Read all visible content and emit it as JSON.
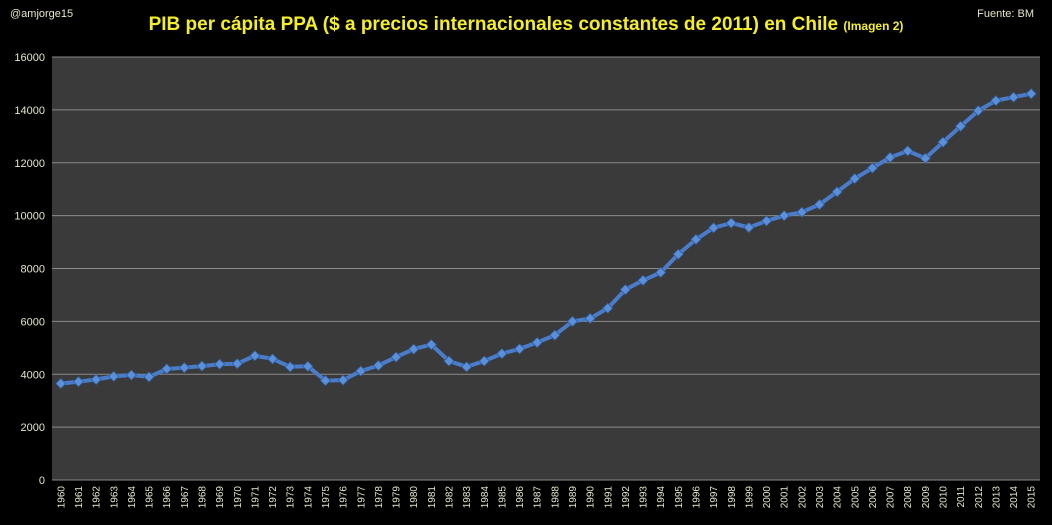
{
  "header": {
    "author": "@amjorge15",
    "source": "Fuente: BM",
    "title_main": "PIB per cápita PPA ($ a precios internacionales constantes de 2011) en Chile",
    "title_suffix": "(Imagen 2)"
  },
  "colors": {
    "background": "#000000",
    "plot_background": "#3a3a3a",
    "gridline": "#8a8a8a",
    "series_line": "#4a7cc9",
    "marker": "#5b8fd8",
    "title": "#f4ee2a",
    "tick_label": "#e6e6c8"
  },
  "chart_data": {
    "type": "line",
    "title": "PIB per cápita PPA ($ a precios internacionales constantes de 2011) en Chile",
    "xlabel": "",
    "ylabel": "",
    "ylim": [
      0,
      16000
    ],
    "yticks": [
      0,
      2000,
      4000,
      6000,
      8000,
      10000,
      12000,
      14000,
      16000
    ],
    "grid": true,
    "legend": "none",
    "categories": [
      "1960",
      "1961",
      "1962",
      "1963",
      "1964",
      "1965",
      "1966",
      "1967",
      "1968",
      "1969",
      "1970",
      "1971",
      "1972",
      "1973",
      "1974",
      "1975",
      "1976",
      "1977",
      "1978",
      "1979",
      "1980",
      "1981",
      "1982",
      "1983",
      "1984",
      "1985",
      "1986",
      "1987",
      "1988",
      "1989",
      "1990",
      "1991",
      "1992",
      "1993",
      "1994",
      "1995",
      "1996",
      "1997",
      "1998",
      "1999",
      "2000",
      "2001",
      "2002",
      "2003",
      "2004",
      "2005",
      "2006",
      "2007",
      "2008",
      "2009",
      "2010",
      "2011",
      "2012",
      "2013",
      "2014",
      "2015"
    ],
    "series": [
      {
        "name": "PIB per cápita PPA",
        "values": [
          3650,
          3720,
          3800,
          3920,
          3970,
          3900,
          4200,
          4250,
          4310,
          4380,
          4400,
          4700,
          4580,
          4280,
          4300,
          3760,
          3780,
          4120,
          4330,
          4650,
          4950,
          5120,
          4500,
          4280,
          4500,
          4780,
          4960,
          5200,
          5480,
          6000,
          6110,
          6500,
          7200,
          7550,
          7850,
          8540,
          9100,
          9540,
          9720,
          9550,
          9800,
          10000,
          10130,
          10420,
          10900,
          11400,
          11800,
          12200,
          12450,
          12170,
          12780,
          13380,
          13970,
          14350,
          14480,
          14610
        ]
      }
    ]
  }
}
